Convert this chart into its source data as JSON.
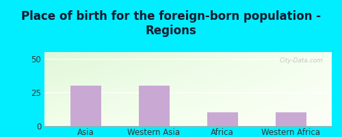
{
  "title": "Place of birth for the foreign-born population -\nRegions",
  "categories": [
    "Asia",
    "Western Asia",
    "Africa",
    "Western Africa"
  ],
  "values": [
    30,
    30,
    10,
    10
  ],
  "bar_color": "#c9a8d4",
  "figure_bg": "#00eeff",
  "chart_bg_topleft": [
    0.88,
    0.97,
    0.85,
    1.0
  ],
  "chart_bg_topright": [
    0.96,
    1.0,
    0.94,
    1.0
  ],
  "chart_bg_bottomleft": [
    0.95,
    1.0,
    0.92,
    1.0
  ],
  "chart_bg_bottomright": [
    0.99,
    1.0,
    0.97,
    1.0
  ],
  "yticks": [
    0,
    25,
    50
  ],
  "ylim": [
    0,
    55
  ],
  "title_fontsize": 12,
  "tick_fontsize": 8.5,
  "watermark": "City-Data.com"
}
